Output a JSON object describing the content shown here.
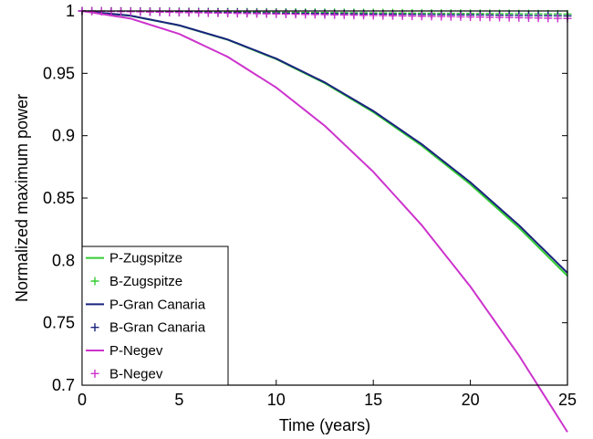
{
  "chart_data": {
    "type": "line",
    "title": "",
    "xlabel": "Time (years)",
    "ylabel": "Normalized maximum power",
    "xlim": [
      0,
      25
    ],
    "ylim": [
      0.7,
      1.0
    ],
    "xticks": [
      0,
      5,
      10,
      15,
      20,
      25
    ],
    "xtick_labels": [
      "0",
      "5",
      "10",
      "15",
      "20",
      "25"
    ],
    "yticks": [
      0.7,
      0.75,
      0.8,
      0.85,
      0.9,
      0.95,
      1.0
    ],
    "ytick_labels": [
      "0.7",
      "0.75",
      "0.8",
      "0.85",
      "0.9",
      "0.95",
      "1"
    ],
    "grid": false,
    "legend_position": "bottom-left",
    "x": [
      0,
      2.5,
      5,
      7.5,
      10,
      12.5,
      15,
      17.5,
      20,
      22.5,
      25
    ],
    "series": [
      {
        "name": "P-Zugspitze",
        "style": "line",
        "color": "#33cc33",
        "values": [
          1.0,
          0.9961,
          0.9884,
          0.9769,
          0.9614,
          0.9421,
          0.9189,
          0.8919,
          0.861,
          0.8262,
          0.7876
        ]
      },
      {
        "name": "B-Zugspitze",
        "style": "plus",
        "color": "#33cc33",
        "values": [
          1.0,
          0.99975,
          0.9995,
          0.99925,
          0.999,
          0.99875,
          0.9985,
          0.99825,
          0.998,
          0.99775,
          0.9975
        ]
      },
      {
        "name": "P-Gran Canaria",
        "style": "line",
        "color": "#1a237e",
        "values": [
          1.0,
          0.9962,
          0.9885,
          0.9771,
          0.9618,
          0.9427,
          0.9198,
          0.8931,
          0.8626,
          0.8282,
          0.79
        ]
      },
      {
        "name": "B-Gran Canaria",
        "style": "plus",
        "color": "#1a237e",
        "values": [
          1.0,
          0.9996,
          0.9992,
          0.9988,
          0.9984,
          0.998,
          0.9976,
          0.9972,
          0.9968,
          0.9964,
          0.996
        ]
      },
      {
        "name": "P-Negev",
        "style": "line",
        "color": "#cc33cc",
        "values": [
          1.0,
          0.9939,
          0.9816,
          0.9632,
          0.9386,
          0.9079,
          0.871,
          0.8281,
          0.779,
          0.7238,
          0.6624
        ]
      },
      {
        "name": "B-Negev",
        "style": "plus",
        "color": "#cc33cc",
        "values": [
          1.0,
          0.9994,
          0.9988,
          0.9982,
          0.9976,
          0.997,
          0.9964,
          0.9958,
          0.9952,
          0.9946,
          0.994
        ]
      }
    ]
  }
}
